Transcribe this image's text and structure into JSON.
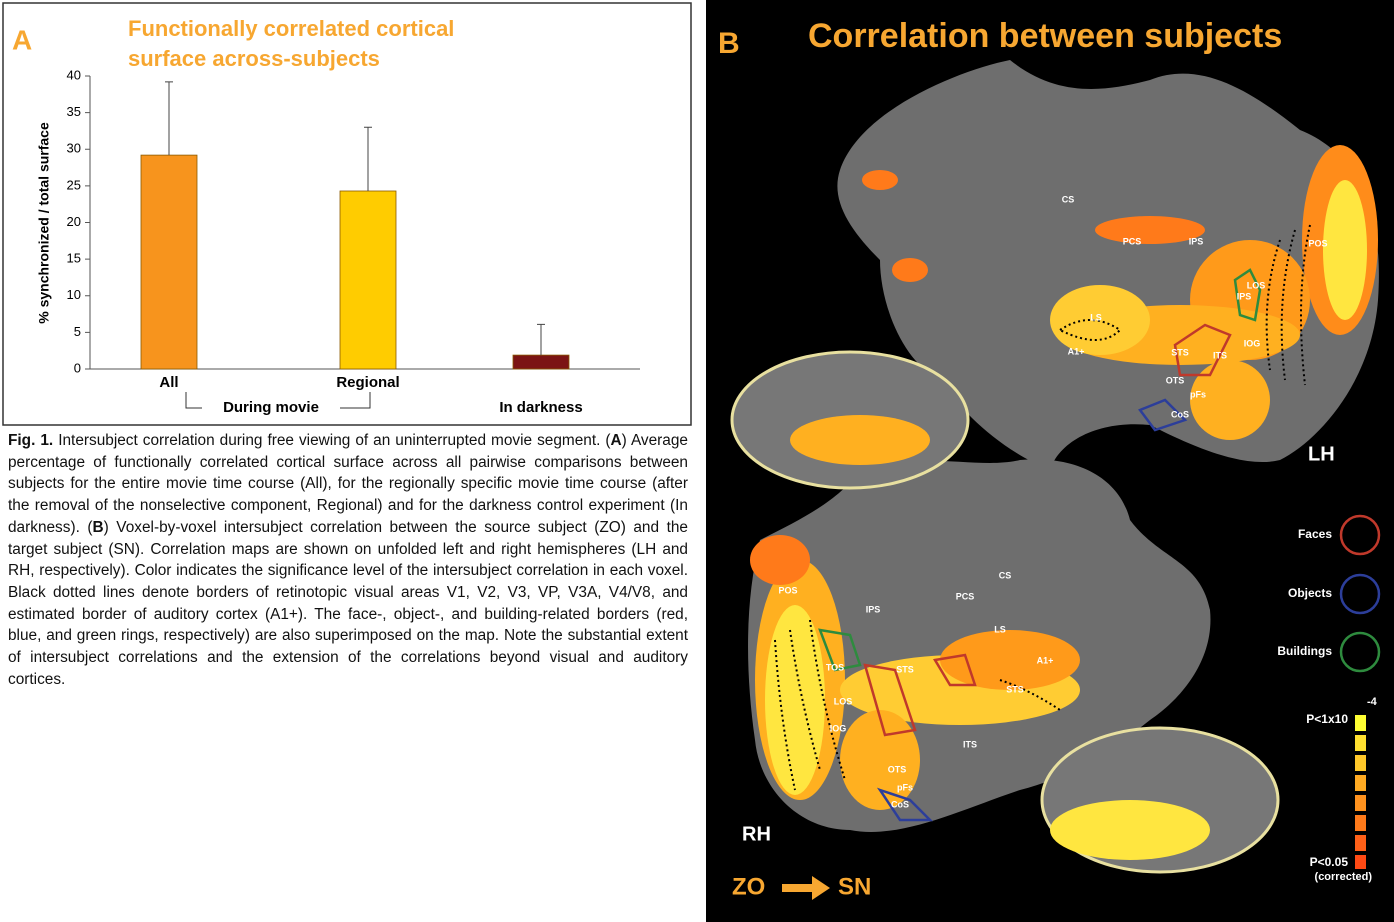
{
  "chart_data": {
    "type": "bar",
    "panel_label": "A",
    "title": "Functionally correlated cortical surface across-subjects",
    "y_label": "% synchronized / total surface",
    "categories": [
      "All",
      "Regional",
      "In darkness"
    ],
    "values": [
      29.2,
      24.3,
      1.9
    ],
    "errors": [
      10,
      8.7,
      4.2
    ],
    "colors": [
      "#f7941d",
      "#ffcc00",
      "#7b1414"
    ],
    "group_label": "During movie",
    "ylim": [
      0,
      40
    ],
    "yticks": [
      0,
      5,
      10,
      15,
      20,
      25,
      30,
      35,
      40
    ]
  },
  "caption": {
    "label": "Fig. 1.",
    "parts": [
      "Intersubject correlation during free viewing of an uninterrupted movie segment. (",
      "A",
      ") Average percentage of functionally correlated cortical surface across all pairwise comparisons between subjects for the entire movie time course (All), for the regionally specific movie time course (after the removal of the nonselective component, Regional) and for the darkness control experiment (In darkness). (",
      "B",
      ") Voxel-by-voxel intersubject correlation between the source subject (ZO) and the target subject (SN). Correlation maps are shown on unfolded left and right hemispheres (LH and RH, respectively). Color indicates the significance level of the intersubject correlation in each voxel. Black dotted lines denote borders of retinotopic visual areas V1, V2, V3, VP, V3A, V4/V8, and estimated border of auditory cortex (A1+). The face-, object-, and building-related borders (red, blue, and green rings, respectively) are also superimposed on the map. Note the substantial extent of intersubject correlations and the extension of the correlations beyond visual and auditory cortices."
    ]
  },
  "panel_b": {
    "panel_label": "B",
    "title": "Correlation between subjects",
    "lh": "LH",
    "rh": "RH",
    "legend": [
      "Faces",
      "Objects",
      "Buildings"
    ],
    "colorbar": {
      "top_label": "P<1x10",
      "top_exponent": "-4",
      "bottom_label": "P<0.05",
      "bottom_note": "(corrected)"
    },
    "source": "ZO",
    "target": "SN",
    "lh_regions": [
      "CS",
      "PCS",
      "IPS",
      "POS",
      "IPS",
      "LS",
      "A1+",
      "STS",
      "LOS",
      "IOG",
      "ITS",
      "OTS",
      "pFs",
      "CoS"
    ],
    "rh_regions": [
      "CS",
      "PCS",
      "IPS",
      "POS",
      "LS",
      "A1+",
      "STS",
      "STS",
      "TOS",
      "LOS",
      "IOG",
      "ITS",
      "OTS",
      "pFs",
      "CoS"
    ]
  }
}
